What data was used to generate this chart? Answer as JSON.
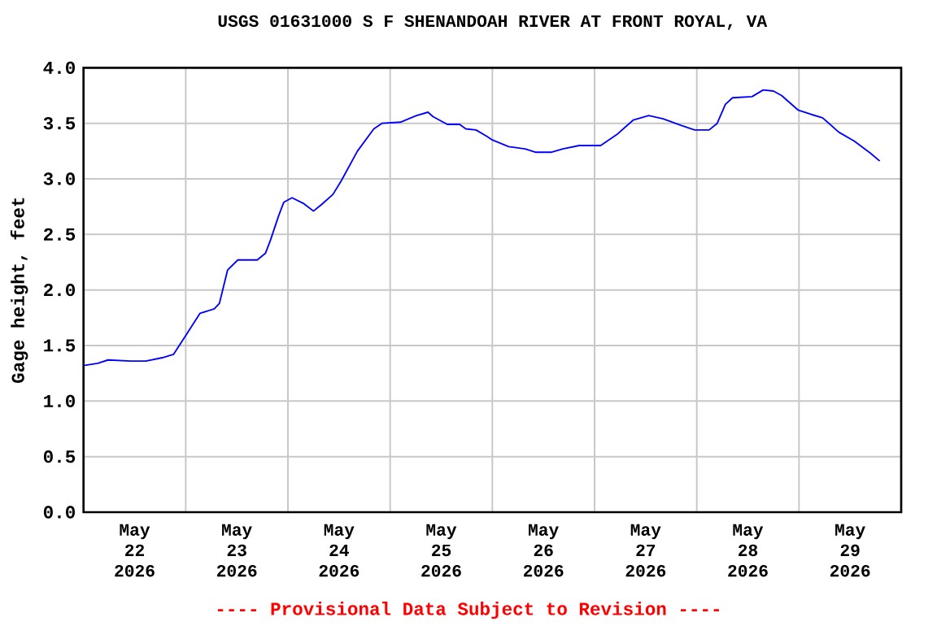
{
  "chart_data": {
    "type": "line",
    "title": "USGS 01631000 S F SHENANDOAH RIVER AT FRONT ROYAL, VA",
    "ylabel": "Gage height, feet",
    "annotations": [
      "---- Provisional Data Subject to Revision ----"
    ],
    "series": [
      {
        "color": "#0000ff",
        "x": [
          "2026-05-22T00:00",
          "2026-05-22T03:22",
          "2026-05-22T05:46",
          "2026-05-22T11:02",
          "2026-05-22T14:38",
          "2026-05-22T18:29",
          "2026-05-22T21:07",
          "2026-05-23T00:00",
          "2026-05-23T03:22",
          "2026-05-23T06:43",
          "2026-05-23T07:55",
          "2026-05-23T09:50",
          "2026-05-23T12:14",
          "2026-05-23T16:48",
          "2026-05-23T18:43",
          "2026-05-23T19:55",
          "2026-05-23T21:50",
          "2026-05-23T23:02",
          "2026-05-24T00:58",
          "2026-05-24T03:36",
          "2026-05-24T06:00",
          "2026-05-24T07:55",
          "2026-05-24T10:34",
          "2026-05-24T12:29",
          "2026-05-24T16:19",
          "2026-05-24T20:10",
          "2026-05-24T22:05",
          "2026-05-25T02:24",
          "2026-05-25T06:14",
          "2026-05-25T08:53",
          "2026-05-25T10:05",
          "2026-05-25T13:26",
          "2026-05-25T16:19",
          "2026-05-25T17:46",
          "2026-05-25T20:10",
          "2026-05-25T22:48",
          "2026-05-26T00:00",
          "2026-05-26T03:50",
          "2026-05-26T07:41",
          "2026-05-26T10:05",
          "2026-05-26T13:55",
          "2026-05-26T16:34",
          "2026-05-26T20:24",
          "2026-05-27T01:26",
          "2026-05-27T05:17",
          "2026-05-27T09:07",
          "2026-05-27T12:43",
          "2026-05-27T16:05",
          "2026-05-27T20:24",
          "2026-05-27T23:31",
          "2026-05-28T02:53",
          "2026-05-28T04:48",
          "2026-05-28T06:43",
          "2026-05-28T08:24",
          "2026-05-28T12:58",
          "2026-05-28T15:36",
          "2026-05-28T18:00",
          "2026-05-28T19:55",
          "2026-05-28T23:46",
          "2026-05-29T02:53",
          "2026-05-29T05:31",
          "2026-05-29T09:22",
          "2026-05-29T12:58",
          "2026-05-29T16:48",
          "2026-05-29T18:58"
        ],
        "values": [
          1.32,
          1.34,
          1.37,
          1.36,
          1.36,
          1.39,
          1.42,
          1.59,
          1.79,
          1.83,
          1.88,
          2.18,
          2.27,
          2.27,
          2.33,
          2.45,
          2.67,
          2.79,
          2.83,
          2.78,
          2.71,
          2.77,
          2.86,
          2.98,
          3.25,
          3.45,
          3.5,
          3.51,
          3.57,
          3.6,
          3.56,
          3.49,
          3.49,
          3.45,
          3.44,
          3.38,
          3.35,
          3.29,
          3.27,
          3.24,
          3.24,
          3.27,
          3.3,
          3.3,
          3.4,
          3.53,
          3.57,
          3.54,
          3.48,
          3.44,
          3.44,
          3.5,
          3.67,
          3.73,
          3.74,
          3.8,
          3.79,
          3.75,
          3.62,
          3.58,
          3.55,
          3.42,
          3.34,
          3.23,
          3.16
        ]
      }
    ],
    "xlim": [
      "2026-05-22T00:00",
      "2026-05-30T00:00"
    ],
    "xticks": [
      {
        "value": "2026-05-22T12:00",
        "label": "May 22 2026"
      },
      {
        "value": "2026-05-23T00:00",
        "label": null
      },
      {
        "value": "2026-05-23T12:00",
        "label": "May 23 2026"
      },
      {
        "value": "2026-05-24T00:00",
        "label": null
      },
      {
        "value": "2026-05-24T12:00",
        "label": "May 24 2026"
      },
      {
        "value": "2026-05-25T00:00",
        "label": null
      },
      {
        "value": "2026-05-25T12:00",
        "label": "May 25 2026"
      },
      {
        "value": "2026-05-26T00:00",
        "label": null
      },
      {
        "value": "2026-05-26T12:00",
        "label": "May 26 2026"
      },
      {
        "value": "2026-05-27T00:00",
        "label": null
      },
      {
        "value": "2026-05-27T12:00",
        "label": "May 27 2026"
      },
      {
        "value": "2026-05-28T00:00",
        "label": null
      },
      {
        "value": "2026-05-28T12:00",
        "label": "May 28 2026"
      },
      {
        "value": "2026-05-29T00:00",
        "label": null
      },
      {
        "value": "2026-05-29T12:00",
        "label": "May 29 2026"
      }
    ],
    "ylim": [
      0,
      4
    ],
    "yticks": [
      {
        "value": 0,
        "label": "0.0"
      },
      {
        "value": 0.5,
        "label": "0.5"
      },
      {
        "value": 1,
        "label": "1.0"
      },
      {
        "value": 1.5,
        "label": "1.5"
      },
      {
        "value": 2,
        "label": "2.0"
      },
      {
        "value": 2.5,
        "label": "2.5"
      },
      {
        "value": 3,
        "label": "3.0"
      },
      {
        "value": 3.5,
        "label": "3.5"
      },
      {
        "value": 4,
        "label": "4.0"
      }
    ],
    "grid": true,
    "marker": "none",
    "line_style": "solid"
  }
}
